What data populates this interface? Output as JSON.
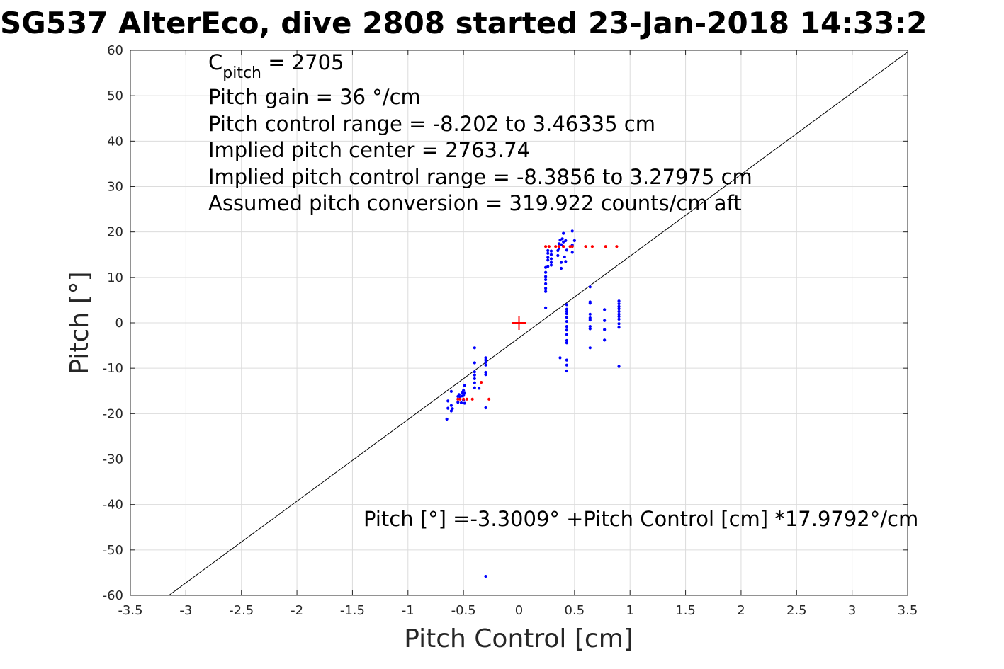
{
  "chart_data": {
    "type": "scatter",
    "title": "SG537 AlterEco, dive 2808 started 23-Jan-2018 14:33:2",
    "xlabel": "Pitch Control [cm]",
    "ylabel": "Pitch [°]",
    "xlim": [
      -3.5,
      3.5
    ],
    "ylim": [
      -60,
      60
    ],
    "xticks": [
      -3.5,
      -3,
      -2.5,
      -2,
      -1.5,
      -1,
      -0.5,
      0,
      0.5,
      1,
      1.5,
      2,
      2.5,
      3,
      3.5
    ],
    "yticks": [
      -60,
      -50,
      -40,
      -30,
      -20,
      -10,
      0,
      10,
      20,
      30,
      40,
      50,
      60
    ],
    "xtick_labels": [
      "-3.5",
      "-3",
      "-2.5",
      "-2",
      "-1.5",
      "-1",
      "-0.5",
      "0",
      "0.5",
      "1",
      "1.5",
      "2",
      "2.5",
      "3",
      "3.5"
    ],
    "ytick_labels": [
      "-60",
      "-50",
      "-40",
      "-30",
      "-20",
      "-10",
      "0",
      "10",
      "20",
      "30",
      "40",
      "50",
      "60"
    ],
    "grid": true,
    "annotations": {
      "cpitch_base": "C",
      "cpitch_sub": "pitch",
      "cpitch_value": " = 2705",
      "pitch_gain": "Pitch gain = 36 °/cm",
      "control_range": "Pitch control range = -8.202 to 3.46335 cm",
      "implied_center": "Implied pitch center = 2763.74",
      "implied_range": "Implied pitch control range = -8.3856 to 3.27975 cm",
      "conversion": "Assumed pitch conversion = 319.922 counts/cm aft",
      "fit_equation": "Pitch [°] =-3.3009° +Pitch Control [cm] *17.9792°/cm"
    },
    "fit_line": {
      "intercept": -3.3009,
      "slope": 17.9792,
      "color": "#000000"
    },
    "center_marker": {
      "x": 0,
      "y": 0,
      "color": "#ff0000"
    },
    "series": [
      {
        "color": "#0000ff",
        "points": [
          [
            -0.65,
            -21.2
          ],
          [
            -0.64,
            -18.8
          ],
          [
            -0.64,
            -17.2
          ],
          [
            -0.61,
            -15.1
          ],
          [
            -0.61,
            -18.2
          ],
          [
            -0.61,
            -19.4
          ],
          [
            -0.6,
            -18.9
          ],
          [
            -0.55,
            -16.2
          ],
          [
            -0.55,
            -16.8
          ],
          [
            -0.55,
            -17.5
          ],
          [
            -0.54,
            -15.8
          ],
          [
            -0.53,
            -16.3
          ],
          [
            -0.52,
            -17.6
          ],
          [
            -0.51,
            -15.4
          ],
          [
            -0.51,
            -16.1
          ],
          [
            -0.5,
            -14.9
          ],
          [
            -0.5,
            -16.0
          ],
          [
            -0.5,
            -17.0
          ],
          [
            -0.49,
            -13.8
          ],
          [
            -0.49,
            -15.5
          ],
          [
            -0.49,
            -17.7
          ],
          [
            -0.4,
            -5.5
          ],
          [
            -0.4,
            -8.8
          ],
          [
            -0.4,
            -10.8
          ],
          [
            -0.4,
            -11.5
          ],
          [
            -0.4,
            -12.3
          ],
          [
            -0.4,
            -13.2
          ],
          [
            -0.4,
            -14.3
          ],
          [
            -0.36,
            -14.4
          ],
          [
            -0.3,
            -7.7
          ],
          [
            -0.3,
            -8.2
          ],
          [
            -0.3,
            -8.7
          ],
          [
            -0.3,
            -9.3
          ],
          [
            -0.3,
            -10.9
          ],
          [
            -0.3,
            -11.4
          ],
          [
            -0.3,
            -18.7
          ],
          [
            -0.3,
            -55.8
          ],
          [
            0.24,
            3.3
          ],
          [
            0.24,
            6.9
          ],
          [
            0.24,
            7.6
          ],
          [
            0.24,
            8.6
          ],
          [
            0.24,
            9.5
          ],
          [
            0.24,
            10.2
          ],
          [
            0.24,
            11.1
          ],
          [
            0.24,
            12.2
          ],
          [
            0.26,
            12.4
          ],
          [
            0.26,
            13.8
          ],
          [
            0.26,
            14.4
          ],
          [
            0.26,
            15.3
          ],
          [
            0.26,
            15.9
          ],
          [
            0.29,
            12.7
          ],
          [
            0.29,
            13.3
          ],
          [
            0.29,
            14.1
          ],
          [
            0.29,
            15.0
          ],
          [
            0.29,
            15.8
          ],
          [
            0.35,
            14.8
          ],
          [
            0.35,
            15.9
          ],
          [
            0.36,
            16.4
          ],
          [
            0.36,
            17.4
          ],
          [
            0.37,
            18.2
          ],
          [
            0.38,
            12.0
          ],
          [
            0.38,
            13.3
          ],
          [
            0.38,
            17.2
          ],
          [
            0.39,
            18.5
          ],
          [
            0.4,
            16.8
          ],
          [
            0.4,
            17.8
          ],
          [
            0.4,
            19.7
          ],
          [
            0.41,
            14.5
          ],
          [
            0.42,
            13.5
          ],
          [
            0.42,
            18.1
          ],
          [
            0.43,
            16.0
          ],
          [
            0.37,
            -7.7
          ],
          [
            0.43,
            4.0
          ],
          [
            0.43,
            3.0
          ],
          [
            0.43,
            2.5
          ],
          [
            0.43,
            2.0
          ],
          [
            0.43,
            1.2
          ],
          [
            0.43,
            0.3
          ],
          [
            0.43,
            -0.8
          ],
          [
            0.43,
            -1.6
          ],
          [
            0.43,
            -2.6
          ],
          [
            0.43,
            -3.9
          ],
          [
            0.43,
            -4.4
          ],
          [
            0.43,
            -8.2
          ],
          [
            0.43,
            -9.3
          ],
          [
            0.43,
            -10.6
          ],
          [
            0.48,
            15.5
          ],
          [
            0.48,
            17.1
          ],
          [
            0.48,
            20.2
          ],
          [
            0.5,
            18.1
          ],
          [
            0.64,
            7.9
          ],
          [
            0.64,
            4.6
          ],
          [
            0.64,
            4.3
          ],
          [
            0.64,
            1.9
          ],
          [
            0.64,
            1.1
          ],
          [
            0.64,
            0.6
          ],
          [
            0.64,
            -0.8
          ],
          [
            0.64,
            -1.3
          ],
          [
            0.64,
            -5.5
          ],
          [
            0.77,
            2.9
          ],
          [
            0.77,
            0.5
          ],
          [
            0.77,
            -1.5
          ],
          [
            0.77,
            -3.8
          ],
          [
            0.9,
            4.8
          ],
          [
            0.9,
            4.2
          ],
          [
            0.9,
            3.6
          ],
          [
            0.9,
            3.1
          ],
          [
            0.9,
            2.5
          ],
          [
            0.9,
            1.9
          ],
          [
            0.9,
            1.4
          ],
          [
            0.9,
            0.8
          ],
          [
            0.9,
            -0.2
          ],
          [
            0.9,
            -1.0
          ],
          [
            0.9,
            -9.6
          ]
        ]
      },
      {
        "color": "#ff0000",
        "points": [
          [
            -0.55,
            -16.8
          ],
          [
            -0.53,
            -16.8
          ],
          [
            -0.5,
            -16.8
          ],
          [
            -0.47,
            -16.8
          ],
          [
            -0.42,
            -16.8
          ],
          [
            -0.34,
            -13.1
          ],
          [
            -0.27,
            -16.8
          ],
          [
            0.24,
            16.8
          ],
          [
            0.27,
            16.8
          ],
          [
            0.33,
            16.8
          ],
          [
            0.36,
            16.8
          ],
          [
            0.4,
            16.8
          ],
          [
            0.46,
            16.8
          ],
          [
            0.48,
            16.8
          ],
          [
            0.6,
            16.8
          ],
          [
            0.66,
            16.8
          ],
          [
            0.78,
            16.8
          ],
          [
            0.88,
            16.8
          ]
        ]
      }
    ]
  }
}
